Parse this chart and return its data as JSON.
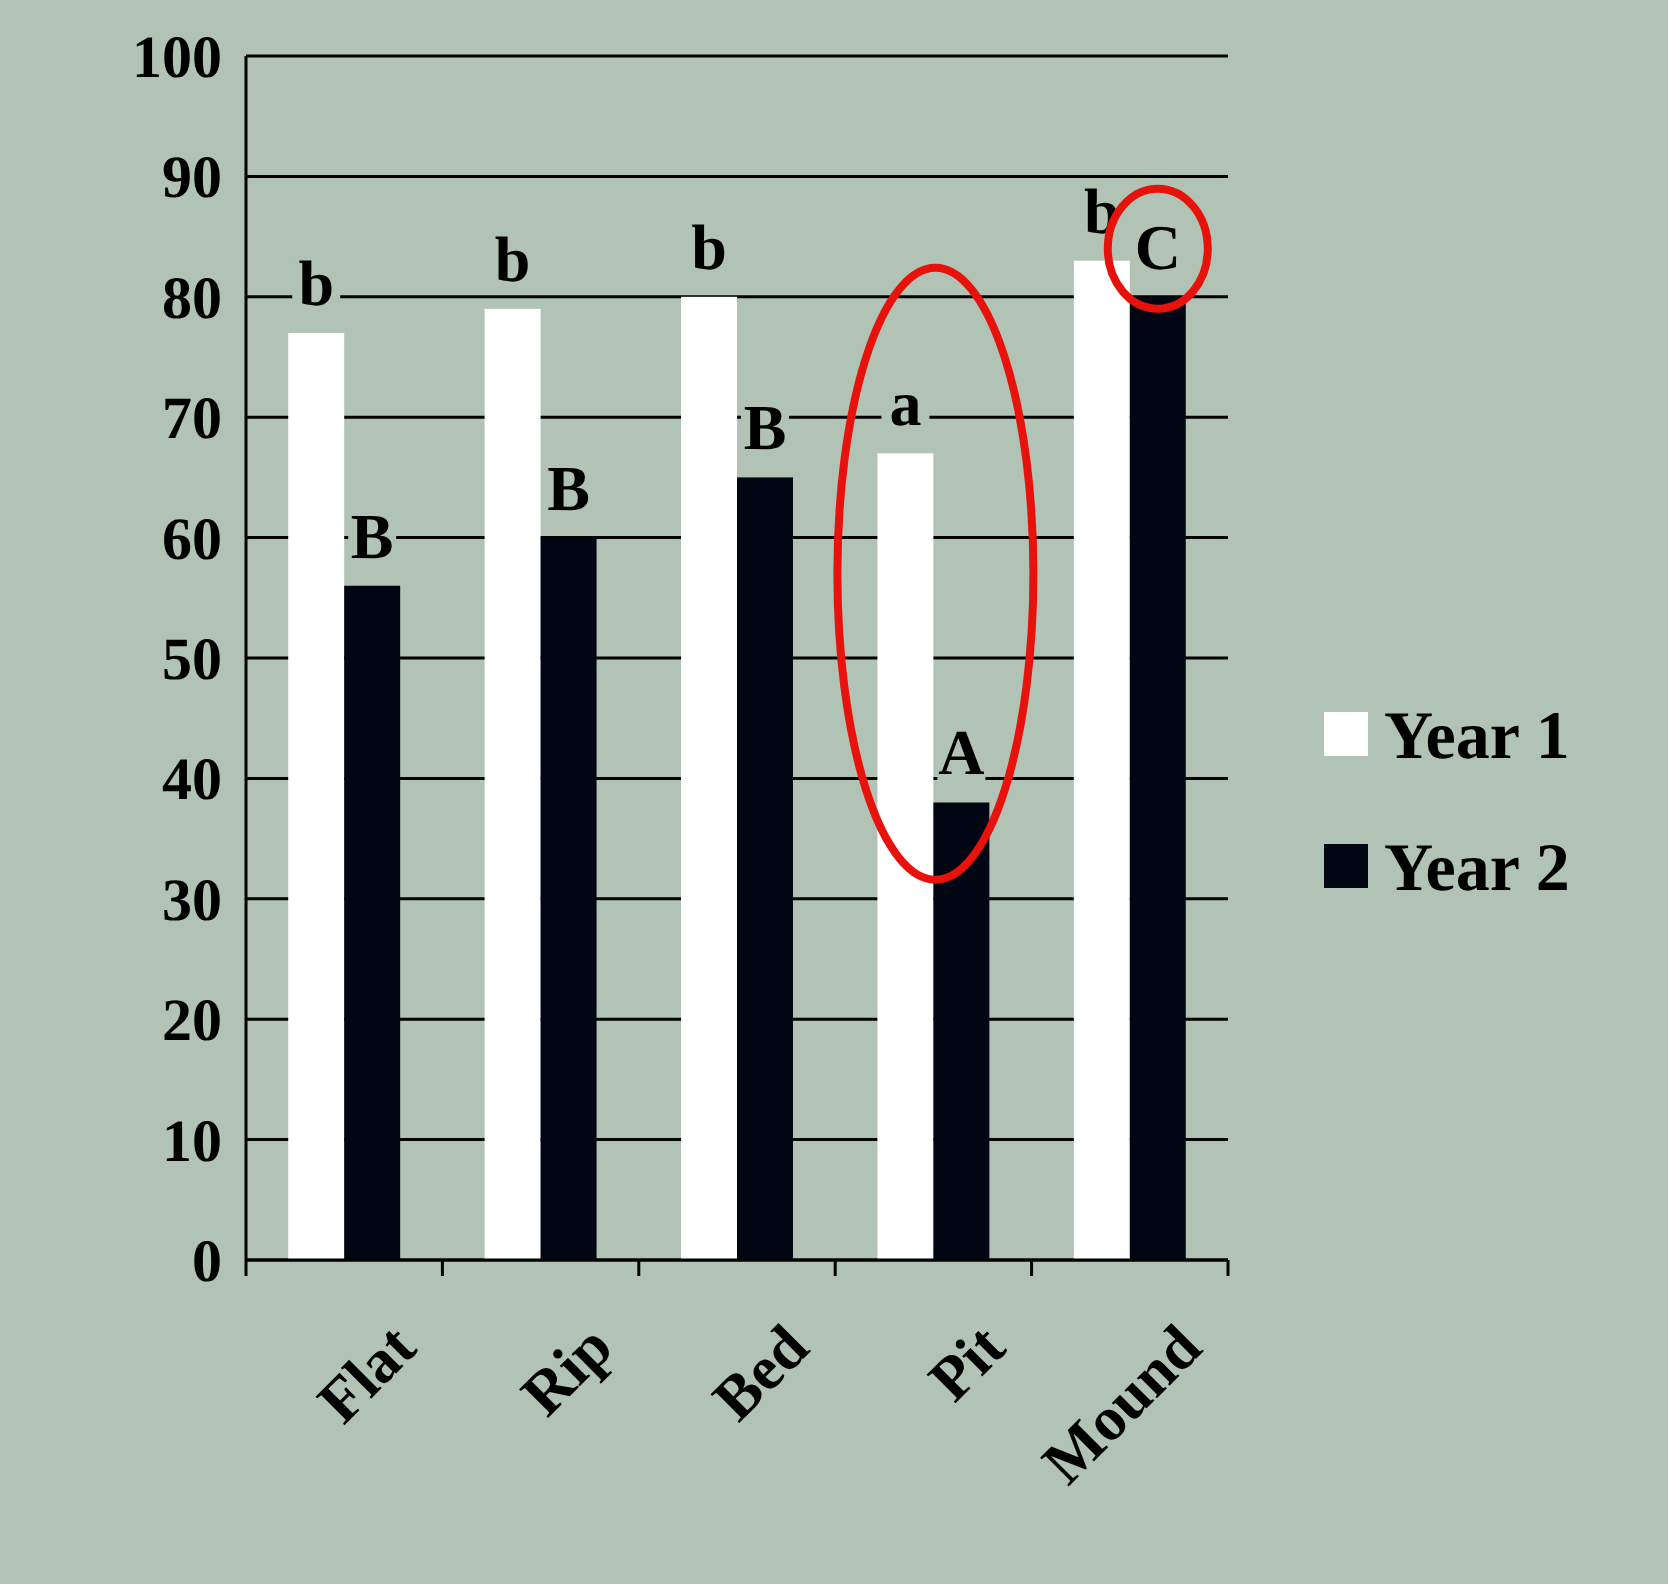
{
  "chart_data": {
    "type": "bar",
    "categories": [
      "Flat",
      "Rip",
      "Bed",
      "Pit",
      "Mound"
    ],
    "series": [
      {
        "name": "Year 1",
        "color": "#ffffff",
        "values": [
          77,
          79,
          80,
          67,
          83
        ]
      },
      {
        "name": "Year 2",
        "color": "#020612",
        "values": [
          56,
          60,
          65,
          38,
          80
        ]
      }
    ],
    "ylim": [
      0,
      100
    ],
    "yticks": [
      0,
      10,
      20,
      30,
      40,
      50,
      60,
      70,
      80,
      90,
      100
    ],
    "grid": "y",
    "legend": "right",
    "annotations": [
      "b",
      "b",
      "b",
      "a",
      "b",
      "B",
      "B",
      "B",
      "A",
      "C"
    ]
  }
}
